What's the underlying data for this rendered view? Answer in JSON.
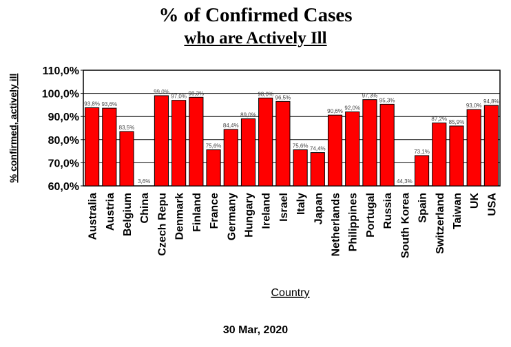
{
  "header": {
    "title": "% of Confirmed Cases",
    "subtitle": "who are Actively Ill"
  },
  "footer": {
    "date": "30 Mar, 2020"
  },
  "chart_data": {
    "type": "bar",
    "xlabel": "Country",
    "ylabel": "% confirmed, actively ill",
    "ylim": [
      60,
      110
    ],
    "yticks": [
      60,
      70,
      80,
      90,
      100,
      110
    ],
    "ytick_labels": [
      "60,0%",
      "70,0%",
      "80,0%",
      "90,0%",
      "100,0%",
      "110,0%"
    ],
    "grid": "horizontal",
    "bar_color": "#ff0000",
    "categories": [
      "Australia",
      "Austria",
      "Belgium",
      "China",
      "Czech Repu",
      "Denmark",
      "Finland",
      "France",
      "Germany",
      "Hungary",
      "Ireland",
      "Israel",
      "Italy",
      "Japan",
      "Netherlands",
      "Philippines",
      "Portugal",
      "Russia",
      "South Korea",
      "Spain",
      "Switzerland",
      "Taiwan",
      "UK",
      "USA"
    ],
    "values": [
      93.8,
      93.6,
      83.5,
      3.6,
      99.0,
      97.0,
      98.3,
      75.6,
      84.4,
      89.0,
      98.0,
      96.5,
      75.6,
      74.4,
      90.6,
      92.0,
      97.3,
      95.3,
      44.3,
      73.1,
      87.2,
      85.9,
      93.0,
      94.8
    ],
    "data_labels": [
      "93,8%",
      "93,6%",
      "83,5%",
      "3,6%",
      "99,0%",
      "97,0%",
      "98,3%",
      "75,6%",
      "84,4%",
      "89,0%",
      "98,0%",
      "96,5%",
      "75,6%",
      "74,4%",
      "90,6%",
      "92,0%",
      "97,3%",
      "95,3%",
      "44,3%",
      "73,1%",
      "87,2%",
      "85,9%",
      "93,0%",
      "94,8%"
    ]
  }
}
